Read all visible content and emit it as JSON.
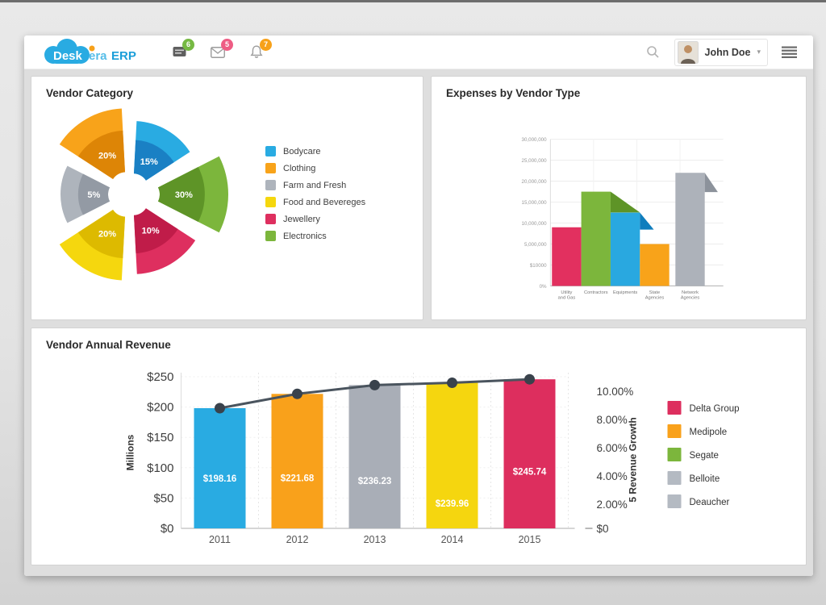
{
  "header": {
    "logo": {
      "part1": "Desk",
      "part2": "era",
      "part3": "ERP"
    },
    "badges": {
      "messages": "6",
      "mail": "5",
      "notifications": "7"
    },
    "badge_colors": {
      "messages": "#76b943",
      "mail": "#ee5c84",
      "notifications": "#f7a11a"
    },
    "user": {
      "name": "John Doe"
    }
  },
  "chart_data": [
    {
      "type": "pie",
      "title": "Vendor Category",
      "style": "exploded two-tone donut, six equal-angle wedges, percent labels on slices",
      "slices": [
        {
          "label": "Bodycare",
          "value_pct": 15,
          "pct_label": "15%",
          "color": "#29abe2",
          "color_dark": "#1a80c4"
        },
        {
          "label": "Clothing",
          "value_pct": 20,
          "pct_label": "20%",
          "color": "#f8a31a",
          "color_dark": "#dd8506"
        },
        {
          "label": "Farm and Fresh",
          "value_pct": 5,
          "pct_label": "5%",
          "color": "#aeb4bc",
          "color_dark": "#939aa4"
        },
        {
          "label": "Food and Bevereges",
          "value_pct": 20,
          "pct_label": "20%",
          "color": "#f5d70e",
          "color_dark": "#ddba00"
        },
        {
          "label": "Jewellery",
          "value_pct": 10,
          "pct_label": "10%",
          "color": "#de2f5f",
          "color_dark": "#c01c49"
        },
        {
          "label": "Electronics",
          "value_pct": 30,
          "pct_label": "30%",
          "color": "#7cb63c",
          "color_dark": "#5e9427"
        }
      ],
      "display_order_clockwise_from_top": [
        0,
        5,
        4,
        3,
        2,
        1
      ]
    },
    {
      "type": "bar",
      "title": "Expenses by Vendor Type",
      "categories": [
        "Utility and Gas",
        "Contractors",
        "Equipments",
        "State Agencies",
        "Network Agencies"
      ],
      "tick_lines": [
        [
          "Utility",
          "and Gas"
        ],
        [
          "Contractors"
        ],
        [
          "Equipments"
        ],
        [
          "State",
          "Agencies"
        ],
        [
          "Network",
          "Agencies"
        ]
      ],
      "values": [
        9000000,
        17500000,
        12500000,
        5000000,
        22000000
      ],
      "bar_colors": [
        "#e2305f",
        "#7cb63c",
        "#29a8e0",
        "#f8a31a",
        "#adb2ba"
      ],
      "fold_colors": [
        null,
        "#5e9427",
        "#0f7dbd",
        null,
        "#8c929b"
      ],
      "folds": [
        null,
        [
          38,
          27
        ],
        [
          18,
          22
        ],
        null,
        [
          17,
          25
        ]
      ],
      "y_ticks": [
        "30,000,000",
        "25,000,000",
        "20,000,000",
        "15,000,000",
        "10,000,000",
        "5,000,000",
        "$10000",
        "0%"
      ],
      "ylim": [
        0,
        30000000
      ],
      "grid": true,
      "legend_position": "none"
    },
    {
      "type": "bar+line",
      "title": "Vendor Annual Revenue",
      "categories": [
        "2011",
        "2012",
        "2013",
        "2014",
        "2015"
      ],
      "bar_series": {
        "name": "Vendor Annual Revenue (Millions $)",
        "values": [
          198.16,
          221.68,
          236.23,
          239.96,
          245.74
        ],
        "labels": [
          "$198.16",
          "$221.68",
          "$236.23",
          "$239.96",
          "$245.74"
        ],
        "colors": [
          "#29abe2",
          "#f9a11b",
          "#a9aeb7",
          "#f5d60f",
          "#dd2e5e"
        ]
      },
      "line_series": {
        "name": "Revenue Growth",
        "values_pct": [
          8.2,
          8.8,
          9.5,
          9.8,
          10.5
        ],
        "color": "#4a545e",
        "marker_color": "#39424c"
      },
      "left_axis": {
        "label": "Millions",
        "ticks": [
          "$250",
          "$200",
          "$150",
          "$100",
          "$50",
          "$0"
        ],
        "max": 250
      },
      "right_axis": {
        "label": "5 Revenue Growth",
        "ticks": [
          "10.00%",
          "8.00%",
          "6.00%",
          "4.00%",
          "2.00%",
          "$0"
        ]
      },
      "legend": [
        {
          "label": "Delta Group",
          "color": "#dd2e5e"
        },
        {
          "label": "Medipole",
          "color": "#f9a11b"
        },
        {
          "label": "Segate",
          "color": "#7cb63c"
        },
        {
          "label": "Belloite",
          "color": "#b4bac2"
        },
        {
          "label": "Deaucher",
          "color": "#b4bac2"
        }
      ],
      "grid": true,
      "legend_position": "right"
    }
  ]
}
